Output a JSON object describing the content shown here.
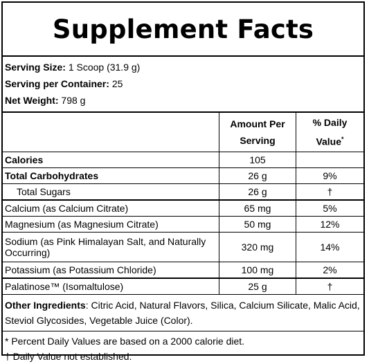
{
  "title": "Supplement Facts",
  "serving": {
    "size_label": "Serving Size:",
    "size_value": "1 Scoop (31.9 g)",
    "per_container_label": "Serving per Container:",
    "per_container_value": "25",
    "net_weight_label": "Net Weight:",
    "net_weight_value": "798 g"
  },
  "table": {
    "headers": {
      "amount": "Amount Per Serving",
      "dv": "% Daily Value",
      "dv_mark": "*"
    },
    "rows": [
      {
        "name": "Calories",
        "amount": "105",
        "dv": ""
      },
      {
        "name": "Total Carbohydrates",
        "amount": "26 g",
        "dv": "9%"
      },
      {
        "name": "Total Sugars",
        "amount": "26 g",
        "dv": "†"
      },
      {
        "name": "Calcium (as Calcium Citrate)",
        "amount": "65 mg",
        "dv": "5%"
      },
      {
        "name": "Magnesium (as Magnesium Citrate)",
        "amount": "50 mg",
        "dv": "12%"
      },
      {
        "name": "Sodium (as Pink Himalayan Salt, and Naturally Occurring)",
        "amount": "320 mg",
        "dv": "14%"
      },
      {
        "name": "Potassium (as Potassium Chloride)",
        "amount": "100 mg",
        "dv": "2%"
      },
      {
        "name": "Palatinose™ (Isomaltulose)",
        "amount": "25 g",
        "dv": "†"
      }
    ]
  },
  "other_ingredients": {
    "label": "Other Ingredients",
    "text": ": Citric Acid, Natural Flavors, Silica, Calcium Silicate, Malic Acid, Steviol Glycosides, Vegetable Juice (Color)."
  },
  "footnotes": [
    "* Percent Daily Values are based on a 2000 calorie diet.",
    "† Daily Value not established."
  ]
}
